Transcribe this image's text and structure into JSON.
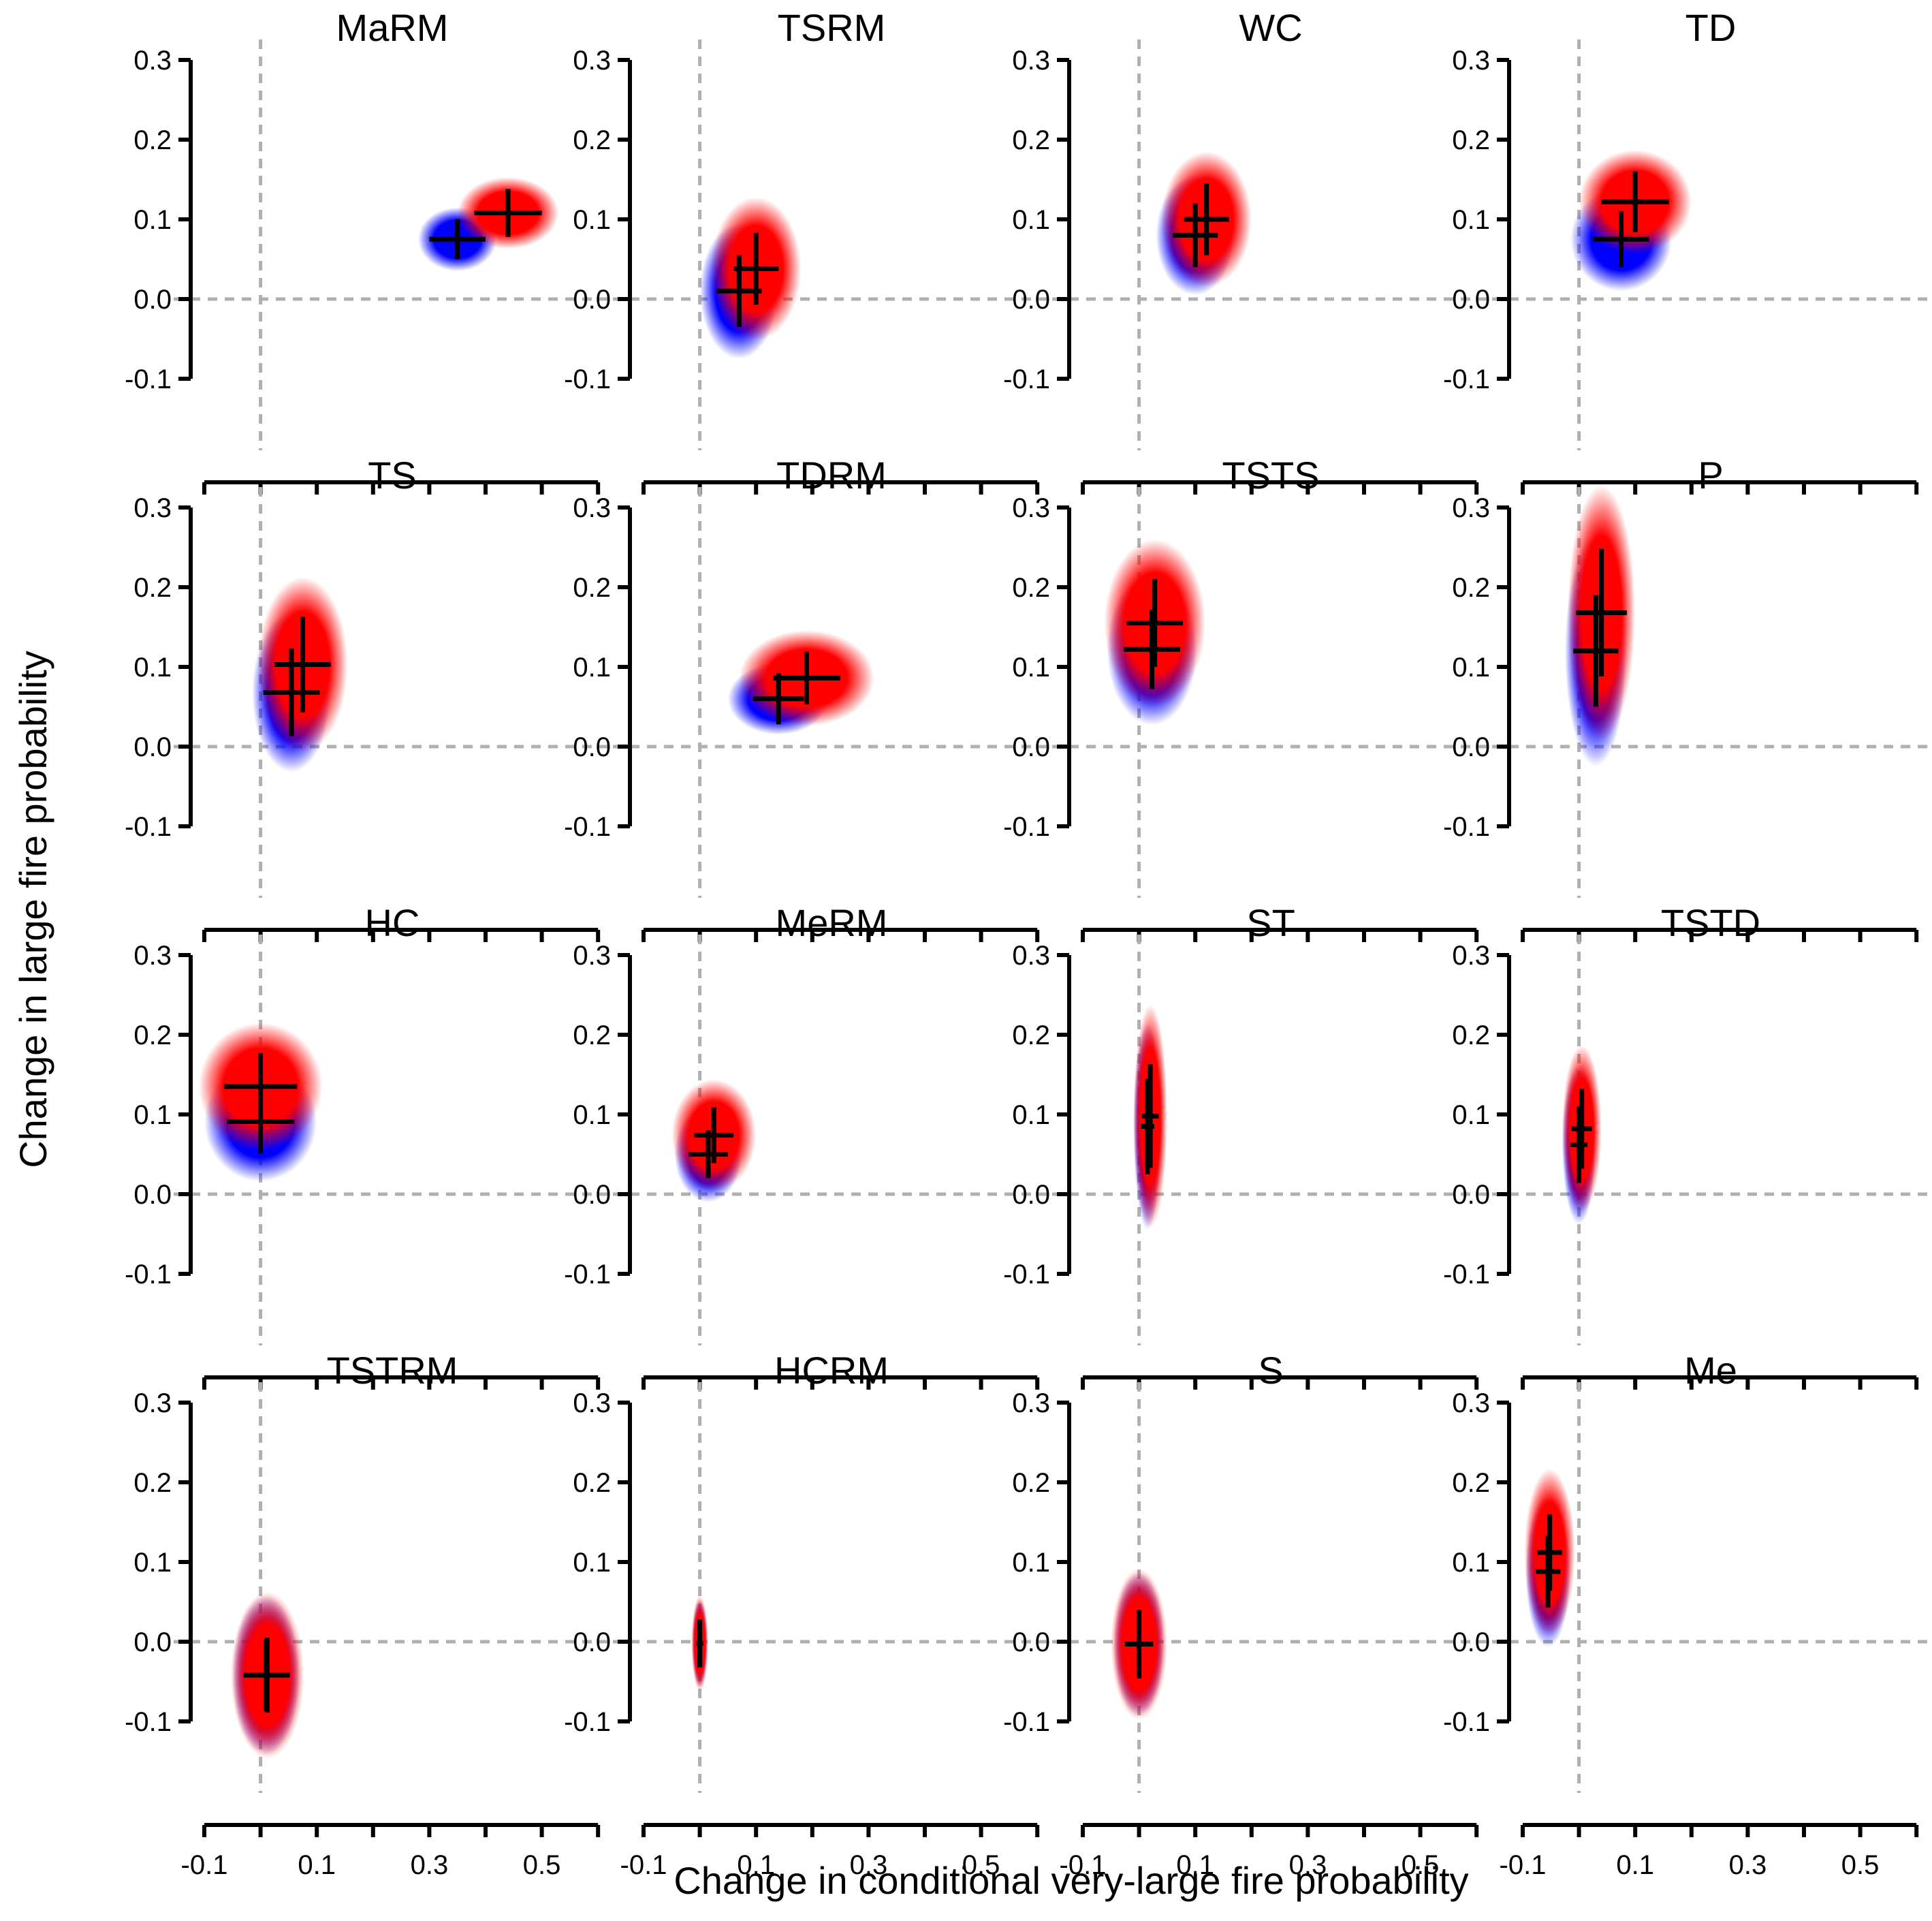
{
  "chart_data": {
    "type": "scatter",
    "xlabel": "Change in conditional very-large fire probability",
    "ylabel": "Change in large fire probability",
    "xlim": [
      -0.1,
      0.6
    ],
    "ylim": [
      -0.1,
      0.3
    ],
    "x_ticks": [
      -0.1,
      0.1,
      0.3,
      0.5
    ],
    "x_minor_ticks": [
      -0.1,
      0.0,
      0.1,
      0.2,
      0.3,
      0.4,
      0.5,
      0.6
    ],
    "y_ticks": [
      -0.1,
      0.0,
      0.1,
      0.2,
      0.3
    ],
    "reference_lines": {
      "x": 0.0,
      "y": 0.0,
      "style": "dashed",
      "color": "#b0b0b0"
    },
    "grid": false,
    "legend": "none",
    "series_colors": {
      "first": "#0000ff",
      "second": "#ff0000",
      "crosshair": "#000000"
    },
    "panels": [
      {
        "title": "MaRM",
        "a": {
          "x": 0.35,
          "y": 0.075,
          "xe": 0.05,
          "ye": 0.025,
          "sx": 0.07,
          "sy": 0.04
        },
        "b": {
          "x": 0.44,
          "y": 0.108,
          "xe": 0.06,
          "ye": 0.03,
          "sx": 0.09,
          "sy": 0.045
        }
      },
      {
        "title": "TSRM",
        "a": {
          "x": 0.07,
          "y": 0.01,
          "xe": 0.04,
          "ye": 0.045,
          "sx": 0.07,
          "sy": 0.085
        },
        "b": {
          "x": 0.1,
          "y": 0.038,
          "xe": 0.04,
          "ye": 0.045,
          "sx": 0.08,
          "sy": 0.09
        }
      },
      {
        "title": "WC",
        "a": {
          "x": 0.1,
          "y": 0.08,
          "xe": 0.04,
          "ye": 0.04,
          "sx": 0.07,
          "sy": 0.075
        },
        "b": {
          "x": 0.12,
          "y": 0.1,
          "xe": 0.04,
          "ye": 0.045,
          "sx": 0.08,
          "sy": 0.085
        }
      },
      {
        "title": "TD",
        "a": {
          "x": 0.075,
          "y": 0.075,
          "xe": 0.05,
          "ye": 0.035,
          "sx": 0.09,
          "sy": 0.065
        },
        "b": {
          "x": 0.1,
          "y": 0.122,
          "xe": 0.06,
          "ye": 0.038,
          "sx": 0.1,
          "sy": 0.065
        }
      },
      {
        "title": "TS",
        "a": {
          "x": 0.055,
          "y": 0.068,
          "xe": 0.05,
          "ye": 0.055,
          "sx": 0.07,
          "sy": 0.1
        },
        "b": {
          "x": 0.075,
          "y": 0.103,
          "xe": 0.05,
          "ye": 0.06,
          "sx": 0.08,
          "sy": 0.11
        }
      },
      {
        "title": "TDRM",
        "a": {
          "x": 0.14,
          "y": 0.06,
          "xe": 0.045,
          "ye": 0.032,
          "sx": 0.09,
          "sy": 0.045
        },
        "b": {
          "x": 0.19,
          "y": 0.086,
          "xe": 0.06,
          "ye": 0.033,
          "sx": 0.12,
          "sy": 0.06
        }
      },
      {
        "title": "TSTS",
        "a": {
          "x": 0.023,
          "y": 0.122,
          "xe": 0.05,
          "ye": 0.05,
          "sx": 0.08,
          "sy": 0.095
        },
        "b": {
          "x": 0.028,
          "y": 0.155,
          "xe": 0.05,
          "ye": 0.055,
          "sx": 0.09,
          "sy": 0.105
        }
      },
      {
        "title": "P",
        "a": {
          "x": 0.03,
          "y": 0.12,
          "xe": 0.04,
          "ye": 0.07,
          "sx": 0.055,
          "sy": 0.145
        },
        "b": {
          "x": 0.04,
          "y": 0.168,
          "xe": 0.045,
          "ye": 0.08,
          "sx": 0.06,
          "sy": 0.16
        }
      },
      {
        "title": "HC",
        "a": {
          "x": 0.0,
          "y": 0.091,
          "xe": 0.06,
          "ye": 0.04,
          "sx": 0.1,
          "sy": 0.075
        },
        "b": {
          "x": 0.0,
          "y": 0.135,
          "xe": 0.065,
          "ye": 0.042,
          "sx": 0.11,
          "sy": 0.08
        }
      },
      {
        "title": "MeRM",
        "a": {
          "x": 0.015,
          "y": 0.05,
          "xe": 0.035,
          "ye": 0.03,
          "sx": 0.06,
          "sy": 0.06
        },
        "b": {
          "x": 0.025,
          "y": 0.074,
          "xe": 0.035,
          "ye": 0.035,
          "sx": 0.075,
          "sy": 0.07
        }
      },
      {
        "title": "ST",
        "a": {
          "x": 0.015,
          "y": 0.085,
          "xe": 0.012,
          "ye": 0.06,
          "sx": 0.025,
          "sy": 0.13
        },
        "b": {
          "x": 0.02,
          "y": 0.098,
          "xe": 0.015,
          "ye": 0.065,
          "sx": 0.03,
          "sy": 0.14
        }
      },
      {
        "title": "TSTD",
        "a": {
          "x": 0.0,
          "y": 0.062,
          "xe": 0.015,
          "ye": 0.048,
          "sx": 0.03,
          "sy": 0.1
        },
        "b": {
          "x": 0.005,
          "y": 0.082,
          "xe": 0.018,
          "ye": 0.05,
          "sx": 0.035,
          "sy": 0.105
        }
      },
      {
        "title": "TSTRM",
        "a": {
          "x": 0.01,
          "y": -0.042,
          "xe": 0.04,
          "ye": 0.045,
          "sx": 0.06,
          "sy": 0.1
        },
        "b": {
          "x": 0.012,
          "y": -0.042,
          "xe": 0.04,
          "ye": 0.047,
          "sx": 0.065,
          "sy": 0.105
        }
      },
      {
        "title": "HCRM",
        "a": {
          "x": 0.0,
          "y": -0.002,
          "xe": 0.006,
          "ye": 0.028,
          "sx": 0.013,
          "sy": 0.055
        },
        "b": {
          "x": 0.0,
          "y": -0.002,
          "xe": 0.006,
          "ye": 0.03,
          "sx": 0.015,
          "sy": 0.06
        }
      },
      {
        "title": "S",
        "a": {
          "x": 0.0,
          "y": -0.003,
          "xe": 0.025,
          "ye": 0.042,
          "sx": 0.045,
          "sy": 0.09
        },
        "b": {
          "x": 0.0,
          "y": -0.003,
          "xe": 0.025,
          "ye": 0.043,
          "sx": 0.05,
          "sy": 0.095
        }
      },
      {
        "title": "Me",
        "a": {
          "x": -0.055,
          "y": 0.088,
          "xe": 0.022,
          "ye": 0.045,
          "sx": 0.04,
          "sy": 0.095
        },
        "b": {
          "x": -0.052,
          "y": 0.112,
          "xe": 0.022,
          "ye": 0.048,
          "sx": 0.045,
          "sy": 0.105
        }
      }
    ]
  }
}
